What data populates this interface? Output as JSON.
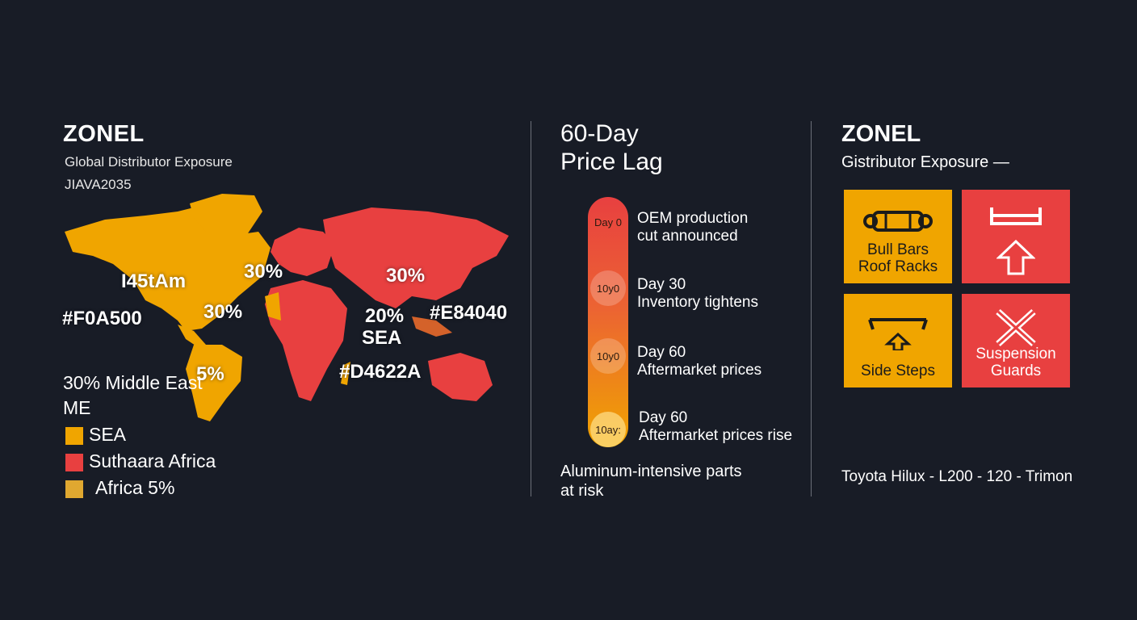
{
  "colors": {
    "background": "#181c26",
    "yellow": "#F0A500",
    "red": "#E84040",
    "orange": "#D4622A",
    "text": "#FFFFFF"
  },
  "panel1": {
    "title": "ZONEL",
    "subtitle": "Global Distributor Exposure",
    "subtitle2": "JIAVA2035",
    "map_labels": {
      "north_america": "I45tAm",
      "pct_north": "30%",
      "pct_west": "30%",
      "pct_east": "30%",
      "pct_sea": "20%",
      "sea": "SEA",
      "pct_south_america": "5%",
      "hex_yellow": "#F0A500",
      "hex_red": "#E84040",
      "hex_orange": "#D4622A"
    },
    "legend": {
      "line1": "30% Middle East",
      "line2": "ME",
      "items": [
        {
          "label": "SEA",
          "color": "#F0A500",
          "icon": "yellow-square"
        },
        {
          "label": "Suthaara Africa",
          "color": "#E84040",
          "icon": "red-square"
        },
        {
          "label": "Africa 5%",
          "color": "#E0A830",
          "icon": "orange-square"
        }
      ]
    }
  },
  "panel2": {
    "title_line1": "60-Day",
    "title_line2": "Price Lag",
    "steps": [
      {
        "badge": "Day 0",
        "line1": "OEM production",
        "line2": "cut announced"
      },
      {
        "badge": "10y0",
        "line1": "Day 30",
        "line2": "Inventory tightens"
      },
      {
        "badge": "10y0",
        "line1": "Day 60",
        "line2": "Aftermarket prices"
      },
      {
        "badge": "10ay:",
        "line1": "Day 60",
        "line2": "Aftermarket prices rise"
      }
    ],
    "footer_line1": "Aluminum-intensive parts",
    "footer_line2": "at risk"
  },
  "panel3": {
    "title": "ZONEL",
    "subtitle": "Gistributor Exposure —",
    "tiles": [
      {
        "line1": "Bull Bars",
        "line2": "Roof Racks",
        "icon": "bull-bar-icon"
      },
      {
        "line1": "",
        "line2": "",
        "icon": "bumper-arrow-icon"
      },
      {
        "line1": "Side Steps",
        "line2": "",
        "icon": "side-step-icon"
      },
      {
        "line1": "Suspension",
        "line2": "Guards",
        "icon": "crossed-tools-icon"
      }
    ],
    "footer": "Toyota Hilux - L200 - 120 - Trimon"
  }
}
